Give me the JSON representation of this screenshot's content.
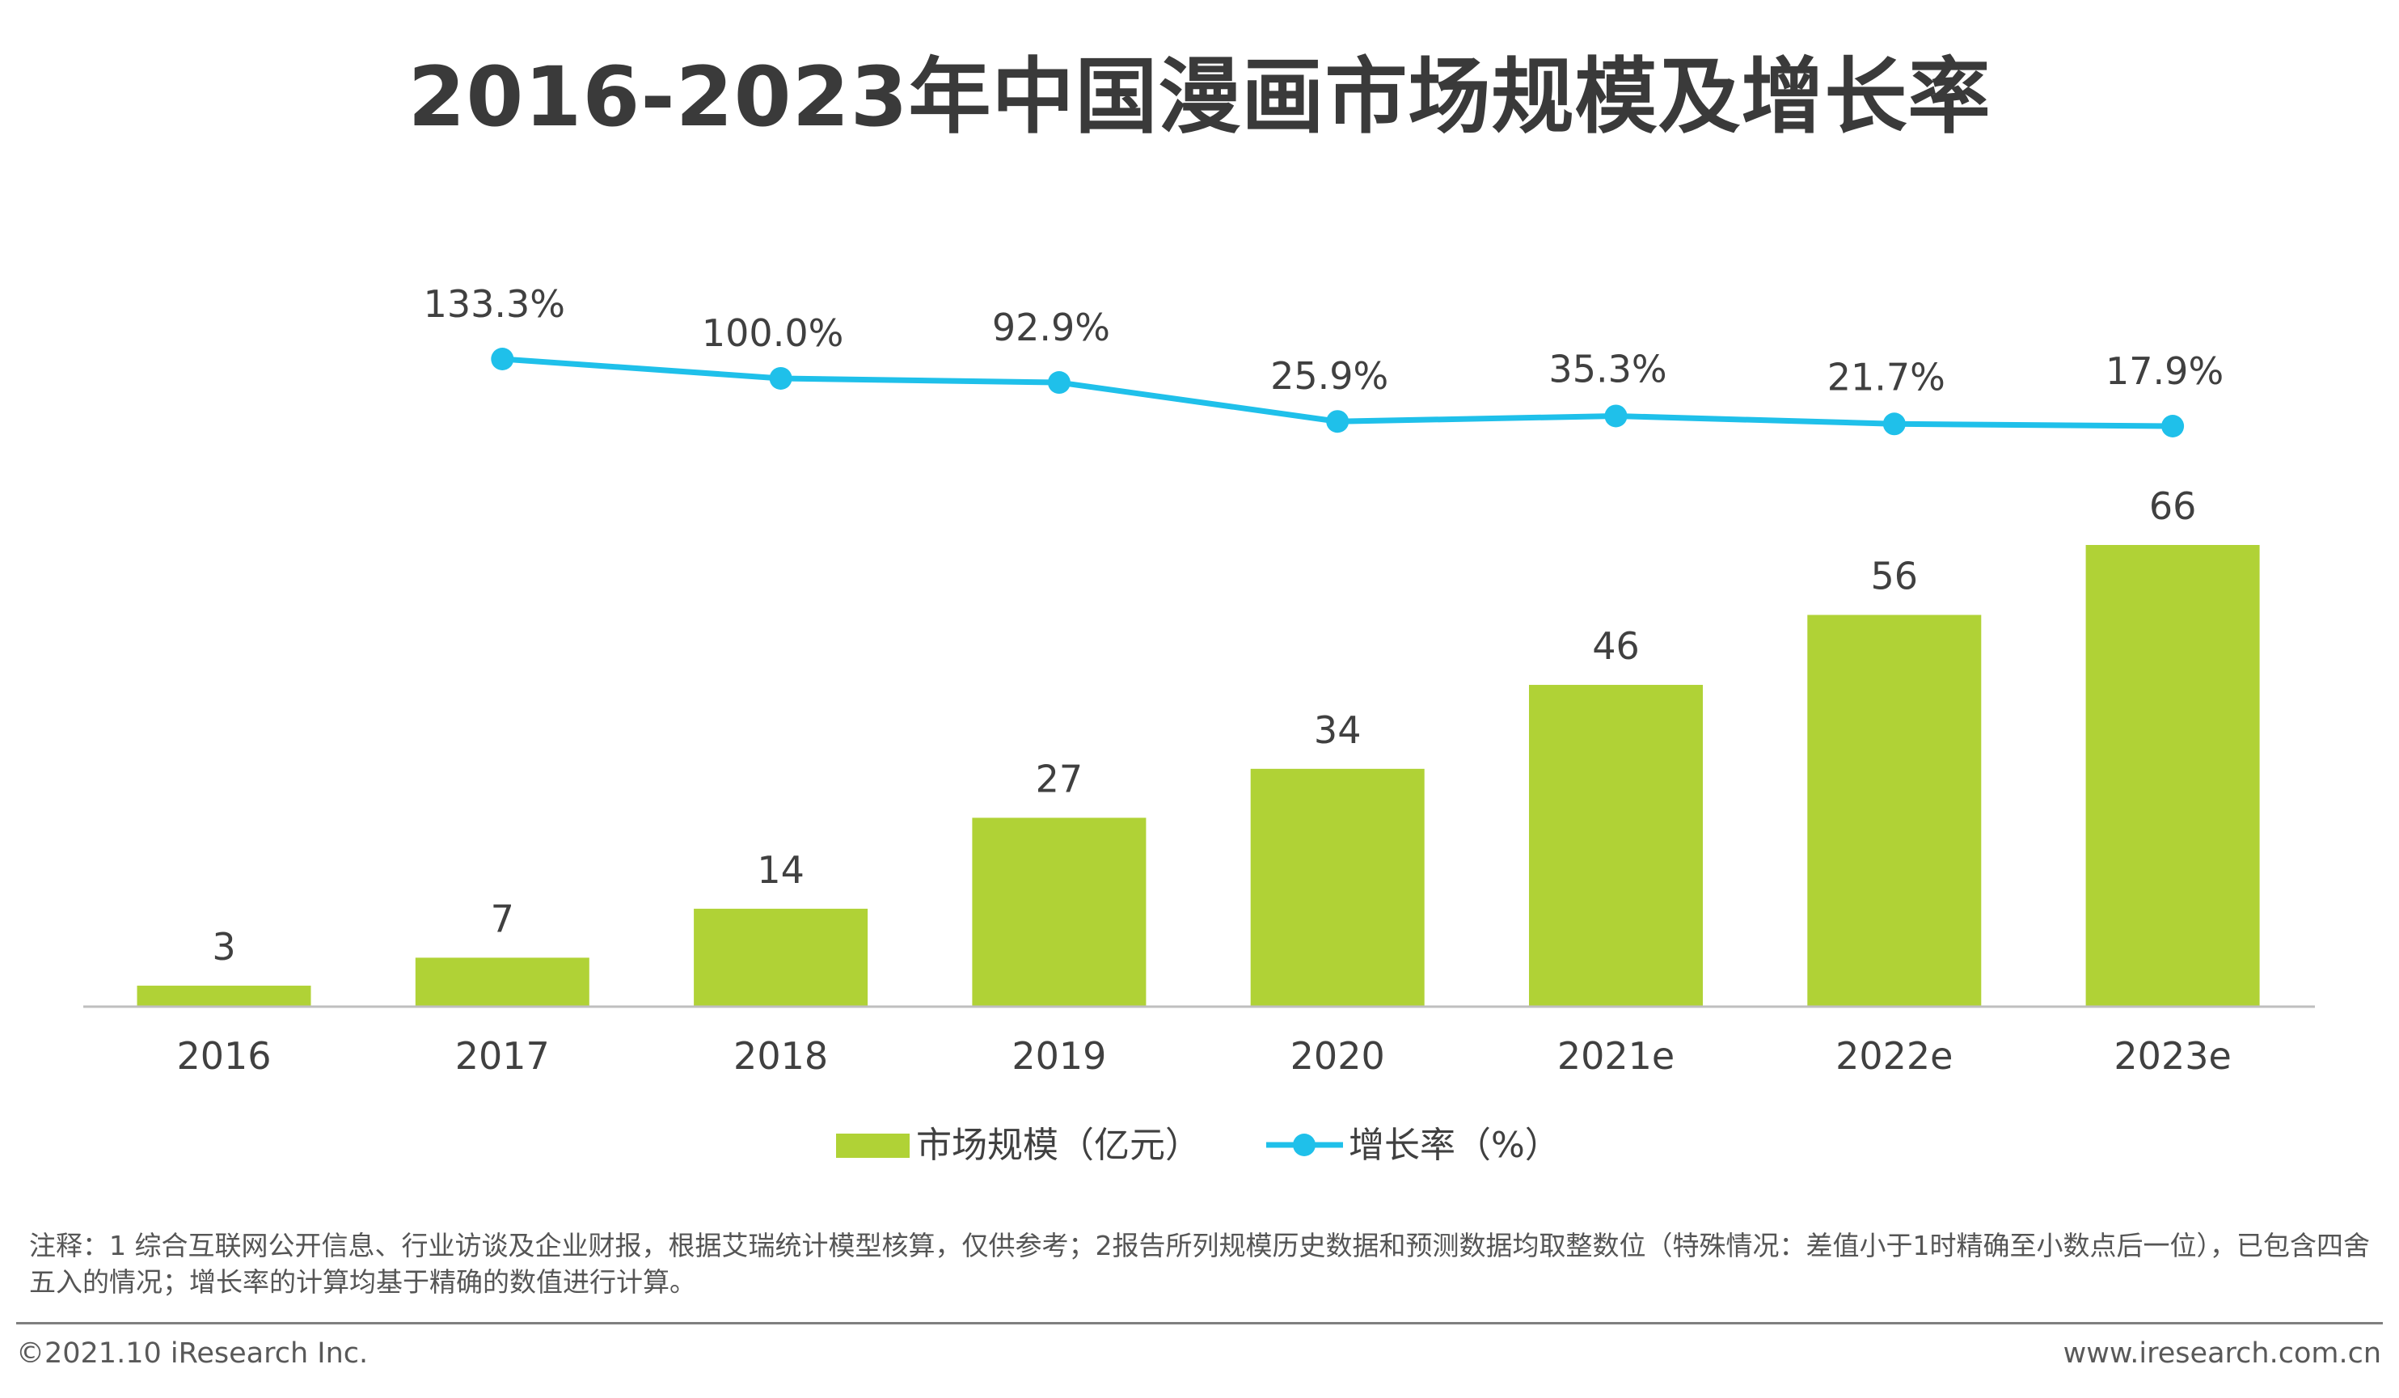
{
  "header": {
    "title": "2016-2023年中国漫画市场规模及增长率"
  },
  "chart_data": {
    "type": "bar+line",
    "title": "2016-2023年中国漫画市场规模及增长率",
    "categories": [
      "2016",
      "2017",
      "2018",
      "2019",
      "2020",
      "2021e",
      "2022e",
      "2023e"
    ],
    "series": [
      {
        "name": "市场规模（亿元）",
        "type": "bar",
        "color": "#b0d236",
        "values": [
          3,
          7,
          14,
          27,
          34,
          46,
          56,
          66
        ],
        "labels": [
          "3",
          "7",
          "14",
          "27",
          "34",
          "46",
          "56",
          "66"
        ]
      },
      {
        "name": "增长率（%）",
        "type": "line",
        "color": "#1fc0ea",
        "values": [
          null,
          133.3,
          100.0,
          92.9,
          25.9,
          35.3,
          21.7,
          17.9
        ],
        "labels": [
          null,
          "133.3%",
          "100.0%",
          "92.9%",
          "25.9%",
          "35.3%",
          "21.7%",
          "17.9%"
        ]
      }
    ],
    "bar_axis_max": 66,
    "line_axis_range": [
      0,
      133.3
    ],
    "legend": [
      "市场规模（亿元）",
      "增长率（%）"
    ],
    "legend_position": "bottom"
  },
  "notes": {
    "text": "注释：1 综合互联网公开信息、行业访谈及企业财报，根据艾瑞统计模型核算，仅供参考；2报告所列规模历史数据和预测数据均取整数位（特殊情况：差值小于1时精确至小数点后一位），已包含四舍五入的情况；增长率的计算均基于精确的数值进行计算。"
  },
  "footer": {
    "copyright": "©2021.10 iResearch Inc.",
    "website": "www.iresearch.com.cn"
  }
}
